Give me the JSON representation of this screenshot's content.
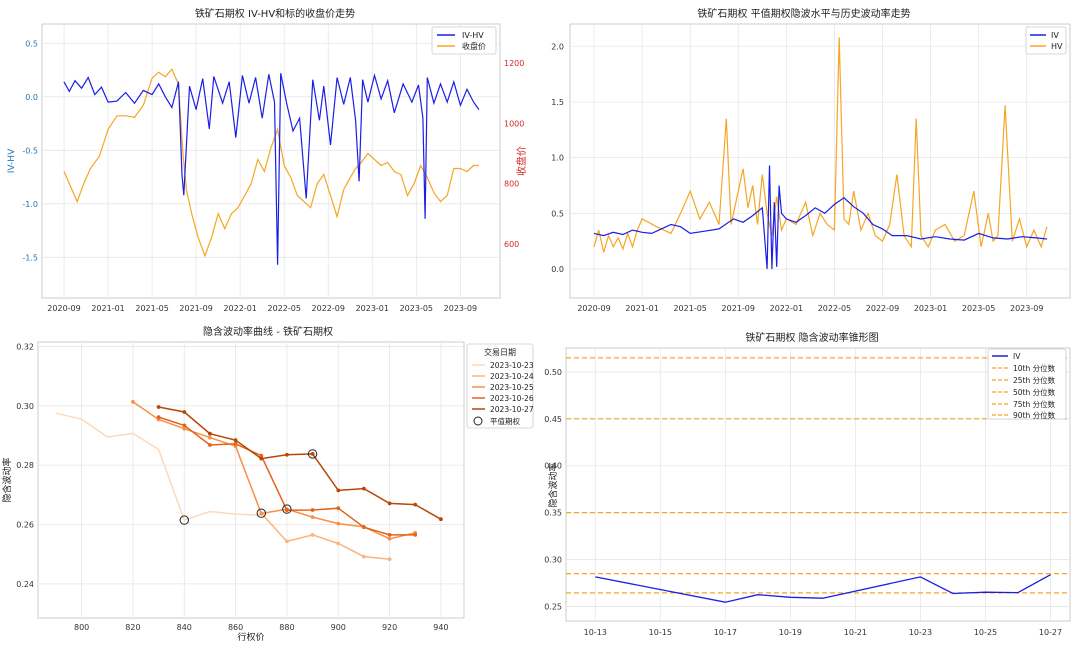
{
  "chart_data": [
    {
      "type": "line",
      "title": "铁矿石期权 IV-HV和标的收盘价走势",
      "xlabel": "",
      "ylabel": "IV-HV",
      "ylabel_right": "收盘价",
      "x_ticks": [
        "2020-09",
        "2021-01",
        "2021-05",
        "2021-09",
        "2022-01",
        "2022-05",
        "2022-09",
        "2023-01",
        "2023-05",
        "2023-09"
      ],
      "xlim": [
        -0.5,
        9.9
      ],
      "ylim": [
        -1.88,
        0.68
      ],
      "y_ticks": [
        "0.5",
        "0.0",
        "-0.5",
        "-1.0",
        "-1.5"
      ],
      "y2lim": [
        420,
        1330
      ],
      "y2_ticks": [
        "1200",
        "1000",
        "800",
        "600"
      ],
      "legend": [
        "IV-HV",
        "收盘价"
      ],
      "legend_position": "top-right",
      "colors": {
        "iv_hv": "#1b1ee6",
        "close": "#f5a623",
        "right_axis": "#d62728"
      },
      "series": [
        {
          "name": "IV-HV",
          "axis": "left",
          "x": [
            0.0,
            0.12,
            0.25,
            0.4,
            0.55,
            0.7,
            0.85,
            1.0,
            1.2,
            1.4,
            1.6,
            1.8,
            2.0,
            2.15,
            2.3,
            2.45,
            2.6,
            2.68,
            2.72,
            2.85,
            3.0,
            3.15,
            3.3,
            3.4,
            3.6,
            3.75,
            3.9,
            4.05,
            4.2,
            4.35,
            4.5,
            4.65,
            4.78,
            4.85,
            4.92,
            5.05,
            5.2,
            5.35,
            5.5,
            5.65,
            5.8,
            5.9,
            6.05,
            6.2,
            6.35,
            6.5,
            6.62,
            6.7,
            6.78,
            6.9,
            7.05,
            7.2,
            7.35,
            7.5,
            7.7,
            7.9,
            8.05,
            8.15,
            8.2,
            8.25,
            8.4,
            8.55,
            8.7,
            8.85,
            9.0,
            9.15,
            9.3,
            9.42
          ],
          "values": [
            0.14,
            0.05,
            0.15,
            0.08,
            0.18,
            0.02,
            0.09,
            -0.05,
            -0.04,
            0.04,
            -0.06,
            0.06,
            0.02,
            0.12,
            0.0,
            -0.1,
            0.14,
            -0.73,
            -0.92,
            0.1,
            -0.12,
            0.17,
            -0.3,
            0.19,
            -0.06,
            0.14,
            -0.38,
            0.2,
            -0.06,
            0.18,
            -0.2,
            0.21,
            -0.05,
            -1.57,
            0.22,
            -0.05,
            -0.32,
            -0.2,
            -0.95,
            0.16,
            -0.22,
            0.1,
            -0.45,
            0.18,
            -0.07,
            0.18,
            -0.22,
            -0.79,
            0.16,
            -0.05,
            0.2,
            -0.02,
            0.15,
            -0.15,
            0.12,
            -0.05,
            0.11,
            -0.2,
            -1.14,
            0.18,
            -0.06,
            0.12,
            -0.05,
            0.14,
            -0.08,
            0.07,
            -0.05,
            -0.12
          ]
        },
        {
          "name": "收盘价",
          "axis": "right",
          "x": [
            0.0,
            0.15,
            0.3,
            0.45,
            0.6,
            0.8,
            1.0,
            1.2,
            1.4,
            1.6,
            1.8,
            2.0,
            2.15,
            2.3,
            2.45,
            2.6,
            2.7,
            2.78,
            2.9,
            3.05,
            3.2,
            3.35,
            3.5,
            3.65,
            3.8,
            3.95,
            4.1,
            4.25,
            4.4,
            4.55,
            4.7,
            4.85,
            5.0,
            5.15,
            5.3,
            5.45,
            5.6,
            5.75,
            5.9,
            6.05,
            6.2,
            6.35,
            6.5,
            6.62,
            6.75,
            6.9,
            7.05,
            7.2,
            7.35,
            7.5,
            7.65,
            7.8,
            7.95,
            8.1,
            8.25,
            8.4,
            8.55,
            8.7,
            8.85,
            9.0,
            9.15,
            9.3,
            9.42
          ],
          "values": [
            840,
            790,
            740,
            800,
            850,
            890,
            980,
            1025,
            1025,
            1020,
            1060,
            1150,
            1170,
            1155,
            1180,
            1130,
            900,
            780,
            700,
            620,
            560,
            620,
            700,
            650,
            700,
            720,
            760,
            800,
            880,
            840,
            920,
            980,
            860,
            820,
            760,
            740,
            720,
            800,
            830,
            760,
            690,
            780,
            820,
            850,
            870,
            900,
            880,
            860,
            870,
            840,
            830,
            760,
            800,
            860,
            820,
            770,
            740,
            760,
            850,
            850,
            840,
            860,
            860
          ]
        }
      ]
    },
    {
      "type": "line",
      "title": "铁矿石期权 平值期权隐波水平与历史波动率走势",
      "xlabel": "",
      "ylabel": "",
      "x_ticks": [
        "2020-09",
        "2021-01",
        "2021-05",
        "2021-09",
        "2022-01",
        "2022-05",
        "2022-09",
        "2023-01",
        "2023-05",
        "2023-09"
      ],
      "xlim": [
        -0.5,
        9.9
      ],
      "ylim": [
        -0.26,
        2.2
      ],
      "y_ticks": [
        "2.0",
        "1.5",
        "1.0",
        "0.5",
        "0.0"
      ],
      "legend": [
        "IV",
        "HV"
      ],
      "legend_position": "top-right",
      "colors": {
        "iv": "#1b1ee6",
        "hv": "#f5a623"
      },
      "series": [
        {
          "name": "IV",
          "x": [
            0.0,
            0.2,
            0.4,
            0.6,
            0.8,
            1.0,
            1.2,
            1.4,
            1.6,
            1.8,
            2.0,
            2.3,
            2.6,
            2.9,
            3.1,
            3.3,
            3.5,
            3.6,
            3.65,
            3.7,
            3.75,
            3.8,
            3.85,
            3.9,
            4.0,
            4.2,
            4.4,
            4.6,
            4.8,
            5.0,
            5.2,
            5.4,
            5.6,
            5.8,
            6.0,
            6.2,
            6.5,
            6.8,
            7.1,
            7.4,
            7.7,
            8.0,
            8.3,
            8.6,
            8.9,
            9.2,
            9.42
          ],
          "values": [
            0.32,
            0.3,
            0.33,
            0.31,
            0.35,
            0.33,
            0.32,
            0.36,
            0.4,
            0.38,
            0.32,
            0.34,
            0.36,
            0.45,
            0.42,
            0.48,
            0.55,
            0.0,
            0.93,
            0.0,
            0.6,
            0.02,
            0.75,
            0.5,
            0.45,
            0.42,
            0.48,
            0.55,
            0.5,
            0.58,
            0.64,
            0.56,
            0.5,
            0.4,
            0.36,
            0.3,
            0.3,
            0.27,
            0.29,
            0.27,
            0.26,
            0.32,
            0.28,
            0.27,
            0.29,
            0.28,
            0.27
          ]
        },
        {
          "name": "HV",
          "x": [
            0.0,
            0.1,
            0.2,
            0.3,
            0.4,
            0.5,
            0.6,
            0.7,
            0.8,
            0.9,
            1.0,
            1.3,
            1.6,
            1.8,
            2.0,
            2.2,
            2.4,
            2.6,
            2.75,
            2.85,
            2.95,
            3.1,
            3.2,
            3.3,
            3.4,
            3.5,
            3.6,
            3.7,
            3.8,
            3.9,
            4.0,
            4.2,
            4.4,
            4.55,
            4.7,
            4.85,
            5.0,
            5.1,
            5.2,
            5.3,
            5.4,
            5.55,
            5.7,
            5.85,
            6.0,
            6.15,
            6.3,
            6.45,
            6.6,
            6.7,
            6.8,
            6.95,
            7.1,
            7.3,
            7.5,
            7.7,
            7.9,
            8.05,
            8.2,
            8.3,
            8.4,
            8.55,
            8.7,
            8.85,
            9.0,
            9.15,
            9.3,
            9.42
          ],
          "values": [
            0.2,
            0.35,
            0.15,
            0.3,
            0.2,
            0.28,
            0.18,
            0.32,
            0.2,
            0.35,
            0.45,
            0.38,
            0.32,
            0.5,
            0.7,
            0.45,
            0.6,
            0.4,
            1.35,
            0.4,
            0.6,
            0.9,
            0.55,
            0.75,
            0.4,
            0.85,
            0.5,
            0.3,
            0.65,
            0.35,
            0.45,
            0.4,
            0.6,
            0.3,
            0.5,
            0.4,
            0.35,
            2.08,
            0.45,
            0.4,
            0.7,
            0.35,
            0.5,
            0.3,
            0.25,
            0.4,
            0.85,
            0.3,
            0.2,
            1.35,
            0.3,
            0.2,
            0.35,
            0.4,
            0.25,
            0.3,
            0.7,
            0.2,
            0.5,
            0.25,
            0.3,
            1.47,
            0.25,
            0.45,
            0.2,
            0.35,
            0.2,
            0.38
          ]
        }
      ]
    },
    {
      "type": "line",
      "title": "隐含波动率曲线 - 铁矿石期权",
      "xlabel": "行权价",
      "ylabel": "隐含波动率",
      "xlim": [
        783,
        949
      ],
      "ylim": [
        0.2285,
        0.3215
      ],
      "x_ticks": [
        800,
        820,
        840,
        860,
        880,
        900,
        920,
        940
      ],
      "y_ticks": [
        0.24,
        0.26,
        0.28,
        0.3,
        0.32
      ],
      "legend_title": "交易日期",
      "legend": [
        "2023-10-23",
        "2023-10-24",
        "2023-10-25",
        "2023-10-26",
        "2023-10-27",
        "平值期权"
      ],
      "legend_position": "top-right",
      "colors": {
        "d1": "#fdd9b9",
        "d2": "#fdb47a",
        "d3": "#f98f44",
        "d4": "#e3631a",
        "d5": "#b84606"
      },
      "series": [
        {
          "name": "2023-10-23",
          "x": [
            790,
            800,
            810,
            820,
            830,
            840,
            850,
            860,
            870
          ],
          "values": [
            0.2975,
            0.2955,
            0.2895,
            0.2907,
            0.2853,
            0.2615,
            0.2644,
            0.2635,
            0.2631
          ],
          "markers": false
        },
        {
          "name": "2023-10-24",
          "x": [
            870,
            880,
            890,
            900,
            910,
            920
          ],
          "values": [
            0.2638,
            0.2543,
            0.2565,
            0.2536,
            0.2492,
            0.2483
          ],
          "markers": true
        },
        {
          "name": "2023-10-25",
          "x": [
            820,
            830,
            840,
            850,
            860,
            870,
            880,
            890,
            900,
            910,
            920,
            930
          ],
          "values": [
            0.3013,
            0.2954,
            0.2923,
            0.2893,
            0.2864,
            0.2637,
            0.2652,
            0.2625,
            0.2603,
            0.2592,
            0.2552,
            0.2572
          ],
          "markers": true
        },
        {
          "name": "2023-10-26",
          "x": [
            830,
            840,
            850,
            860,
            870,
            880,
            890,
            900,
            910,
            920,
            930
          ],
          "values": [
            0.2962,
            0.2934,
            0.2868,
            0.2872,
            0.2832,
            0.2648,
            0.2649,
            0.2655,
            0.2591,
            0.2565,
            0.2565
          ],
          "markers": true
        },
        {
          "name": "2023-10-27",
          "x": [
            830,
            840,
            850,
            860,
            870,
            880,
            890,
            900,
            910,
            920,
            930,
            940
          ],
          "values": [
            0.2996,
            0.2979,
            0.2906,
            0.2884,
            0.2822,
            0.2835,
            0.2838,
            0.2715,
            0.2721,
            0.2671,
            0.2667,
            0.2618
          ],
          "markers": true
        }
      ],
      "atm_points": [
        {
          "x": 840,
          "y": 0.2615
        },
        {
          "x": 870,
          "y": 0.2638
        },
        {
          "x": 880,
          "y": 0.2652
        },
        {
          "x": 890,
          "y": 0.2838
        }
      ]
    },
    {
      "type": "line",
      "title": "铁矿石期权 隐含波动率锥形图",
      "xlabel": "",
      "ylabel": "隐含波动率",
      "xlim": [
        -0.9,
        14.6
      ],
      "ylim": [
        0.2345,
        0.5255
      ],
      "x_ticks": [
        "10-13",
        "10-15",
        "10-17",
        "10-19",
        "10-21",
        "10-23",
        "10-25",
        "10-27"
      ],
      "x_tick_positions": [
        0,
        2,
        4,
        6,
        8,
        10,
        12,
        14
      ],
      "y_ticks": [
        0.25,
        0.3,
        0.35,
        0.4,
        0.45,
        0.5
      ],
      "legend": [
        "IV",
        "10th 分位数",
        "25th 分位数",
        "50th 分位数",
        "75th 分位数",
        "90th 分位数"
      ],
      "legend_position": "top-right",
      "colors": {
        "iv": "#1b1ee6",
        "quantile": "#f5a623"
      },
      "series": [
        {
          "name": "IV",
          "x": [
            0,
            4,
            5,
            6,
            7,
            10,
            11,
            12,
            13,
            14
          ],
          "values": [
            0.2815,
            0.2545,
            0.2625,
            0.2598,
            0.2588,
            0.2815,
            0.2638,
            0.2652,
            0.2648,
            0.2838
          ]
        }
      ],
      "quantiles": [
        {
          "name": "10th 分位数",
          "value": 0.2645
        },
        {
          "name": "25th 分位数",
          "value": 0.285
        },
        {
          "name": "50th 分位数",
          "value": 0.35
        },
        {
          "name": "75th 分位数",
          "value": 0.45
        },
        {
          "name": "90th 分位数",
          "value": 0.515
        }
      ]
    }
  ]
}
